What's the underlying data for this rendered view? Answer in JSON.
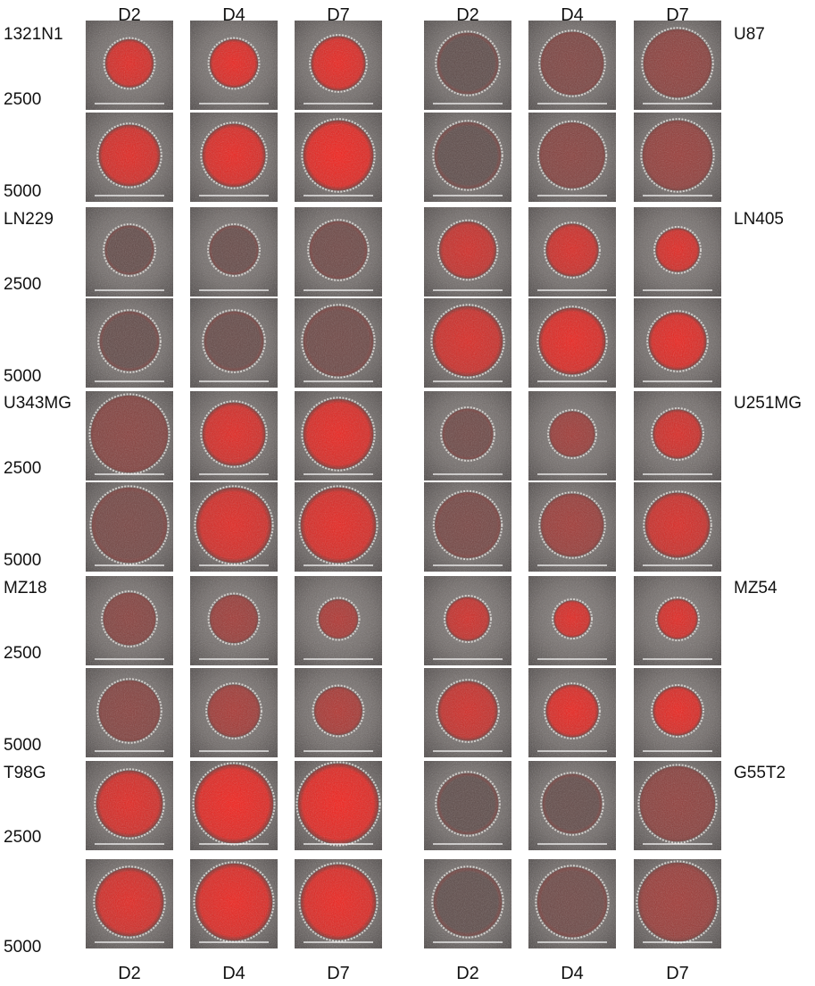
{
  "day_labels": [
    "D2",
    "D4",
    "D7",
    "D2",
    "D4",
    "D7"
  ],
  "density_labels": [
    "2500",
    "5000"
  ],
  "cell_lines_left": [
    "1321N1",
    "LN229",
    "U343MG",
    "MZ18",
    "T98G"
  ],
  "cell_lines_right": [
    "U87",
    "LN405",
    "U251MG",
    "MZ54",
    "G55T2"
  ],
  "colors": {
    "background": "#ffffff",
    "tile_background": "#6b6563",
    "fluorescence": "#ff1a14",
    "scale_bar": "#ffffff"
  },
  "panels": [
    {
      "line": "1321N1",
      "density": "2500",
      "day": "D2",
      "red_intensity": 0.85,
      "size": 0.55
    },
    {
      "line": "1321N1",
      "density": "2500",
      "day": "D4",
      "red_intensity": 0.9,
      "size": 0.55
    },
    {
      "line": "1321N1",
      "density": "2500",
      "day": "D7",
      "red_intensity": 0.9,
      "size": 0.62
    },
    {
      "line": "U87",
      "density": "2500",
      "day": "D2",
      "red_intensity": 0.05,
      "size": 0.7
    },
    {
      "line": "U87",
      "density": "2500",
      "day": "D4",
      "red_intensity": 0.25,
      "size": 0.72
    },
    {
      "line": "U87",
      "density": "2500",
      "day": "D7",
      "red_intensity": 0.35,
      "size": 0.78
    },
    {
      "line": "1321N1",
      "density": "5000",
      "day": "D2",
      "red_intensity": 0.85,
      "size": 0.7
    },
    {
      "line": "1321N1",
      "density": "5000",
      "day": "D4",
      "red_intensity": 0.9,
      "size": 0.72
    },
    {
      "line": "1321N1",
      "density": "5000",
      "day": "D7",
      "red_intensity": 0.95,
      "size": 0.8
    },
    {
      "line": "U87",
      "density": "5000",
      "day": "D2",
      "red_intensity": 0.05,
      "size": 0.76
    },
    {
      "line": "U87",
      "density": "5000",
      "day": "D4",
      "red_intensity": 0.3,
      "size": 0.75
    },
    {
      "line": "U87",
      "density": "5000",
      "day": "D7",
      "red_intensity": 0.4,
      "size": 0.8
    },
    {
      "line": "LN229",
      "density": "2500",
      "day": "D2",
      "red_intensity": 0.08,
      "size": 0.56
    },
    {
      "line": "LN229",
      "density": "2500",
      "day": "D4",
      "red_intensity": 0.1,
      "size": 0.56
    },
    {
      "line": "LN229",
      "density": "2500",
      "day": "D7",
      "red_intensity": 0.15,
      "size": 0.66
    },
    {
      "line": "LN405",
      "density": "2500",
      "day": "D2",
      "red_intensity": 0.75,
      "size": 0.65
    },
    {
      "line": "LN405",
      "density": "2500",
      "day": "D4",
      "red_intensity": 0.8,
      "size": 0.6
    },
    {
      "line": "LN405",
      "density": "2500",
      "day": "D7",
      "red_intensity": 0.85,
      "size": 0.5
    },
    {
      "line": "LN229",
      "density": "5000",
      "day": "D2",
      "red_intensity": 0.08,
      "size": 0.68
    },
    {
      "line": "LN229",
      "density": "5000",
      "day": "D4",
      "red_intensity": 0.1,
      "size": 0.68
    },
    {
      "line": "LN229",
      "density": "5000",
      "day": "D7",
      "red_intensity": 0.15,
      "size": 0.8
    },
    {
      "line": "LN405",
      "density": "5000",
      "day": "D2",
      "red_intensity": 0.8,
      "size": 0.8
    },
    {
      "line": "LN405",
      "density": "5000",
      "day": "D4",
      "red_intensity": 0.9,
      "size": 0.76
    },
    {
      "line": "LN405",
      "density": "5000",
      "day": "D7",
      "red_intensity": 0.9,
      "size": 0.66
    },
    {
      "line": "U343MG",
      "density": "2500",
      "day": "D2",
      "red_intensity": 0.3,
      "size": 0.88
    },
    {
      "line": "U343MG",
      "density": "2500",
      "day": "D4",
      "red_intensity": 0.85,
      "size": 0.72
    },
    {
      "line": "U343MG",
      "density": "2500",
      "day": "D7",
      "red_intensity": 0.9,
      "size": 0.8
    },
    {
      "line": "U251MG",
      "density": "2500",
      "day": "D2",
      "red_intensity": 0.15,
      "size": 0.58
    },
    {
      "line": "U251MG",
      "density": "2500",
      "day": "D4",
      "red_intensity": 0.45,
      "size": 0.52
    },
    {
      "line": "U251MG",
      "density": "2500",
      "day": "D7",
      "red_intensity": 0.8,
      "size": 0.56
    },
    {
      "line": "U343MG",
      "density": "5000",
      "day": "D2",
      "red_intensity": 0.2,
      "size": 0.86
    },
    {
      "line": "U343MG",
      "density": "5000",
      "day": "D4",
      "red_intensity": 0.85,
      "size": 0.86
    },
    {
      "line": "U343MG",
      "density": "5000",
      "day": "D7",
      "red_intensity": 0.88,
      "size": 0.86
    },
    {
      "line": "U251MG",
      "density": "5000",
      "day": "D2",
      "red_intensity": 0.2,
      "size": 0.75
    },
    {
      "line": "U251MG",
      "density": "5000",
      "day": "D4",
      "red_intensity": 0.45,
      "size": 0.72
    },
    {
      "line": "U251MG",
      "density": "5000",
      "day": "D7",
      "red_intensity": 0.8,
      "size": 0.74
    },
    {
      "line": "MZ18",
      "density": "2500",
      "day": "D2",
      "red_intensity": 0.3,
      "size": 0.6
    },
    {
      "line": "MZ18",
      "density": "2500",
      "day": "D4",
      "red_intensity": 0.45,
      "size": 0.55
    },
    {
      "line": "MZ18",
      "density": "2500",
      "day": "D7",
      "red_intensity": 0.55,
      "size": 0.45
    },
    {
      "line": "MZ54",
      "density": "2500",
      "day": "D2",
      "red_intensity": 0.75,
      "size": 0.5
    },
    {
      "line": "MZ54",
      "density": "2500",
      "day": "D4",
      "red_intensity": 0.85,
      "size": 0.42
    },
    {
      "line": "MZ54",
      "density": "2500",
      "day": "D7",
      "red_intensity": 0.85,
      "size": 0.46
    },
    {
      "line": "MZ18",
      "density": "5000",
      "day": "D2",
      "red_intensity": 0.3,
      "size": 0.7
    },
    {
      "line": "MZ18",
      "density": "5000",
      "day": "D4",
      "red_intensity": 0.5,
      "size": 0.6
    },
    {
      "line": "MZ18",
      "density": "5000",
      "day": "D7",
      "red_intensity": 0.55,
      "size": 0.55
    },
    {
      "line": "MZ54",
      "density": "5000",
      "day": "D2",
      "red_intensity": 0.75,
      "size": 0.68
    },
    {
      "line": "MZ54",
      "density": "5000",
      "day": "D4",
      "red_intensity": 0.9,
      "size": 0.6
    },
    {
      "line": "MZ54",
      "density": "5000",
      "day": "D7",
      "red_intensity": 0.9,
      "size": 0.56
    },
    {
      "line": "T98G",
      "density": "2500",
      "day": "D2",
      "red_intensity": 0.85,
      "size": 0.76
    },
    {
      "line": "T98G",
      "density": "2500",
      "day": "D4",
      "red_intensity": 0.95,
      "size": 0.9
    },
    {
      "line": "T98G",
      "density": "2500",
      "day": "D7",
      "red_intensity": 0.95,
      "size": 0.92
    },
    {
      "line": "G55T2",
      "density": "2500",
      "day": "D2",
      "red_intensity": 0.05,
      "size": 0.7
    },
    {
      "line": "G55T2",
      "density": "2500",
      "day": "D4",
      "red_intensity": 0.08,
      "size": 0.68
    },
    {
      "line": "G55T2",
      "density": "2500",
      "day": "D7",
      "red_intensity": 0.35,
      "size": 0.86
    },
    {
      "line": "T98G",
      "density": "5000",
      "day": "D2",
      "red_intensity": 0.85,
      "size": 0.78
    },
    {
      "line": "T98G",
      "density": "5000",
      "day": "D4",
      "red_intensity": 0.92,
      "size": 0.88
    },
    {
      "line": "T98G",
      "density": "5000",
      "day": "D7",
      "red_intensity": 0.92,
      "size": 0.86
    },
    {
      "line": "G55T2",
      "density": "5000",
      "day": "D2",
      "red_intensity": 0.05,
      "size": 0.78
    },
    {
      "line": "G55T2",
      "density": "5000",
      "day": "D4",
      "red_intensity": 0.15,
      "size": 0.8
    },
    {
      "line": "G55T2",
      "density": "5000",
      "day": "D7",
      "red_intensity": 0.45,
      "size": 0.9
    }
  ]
}
